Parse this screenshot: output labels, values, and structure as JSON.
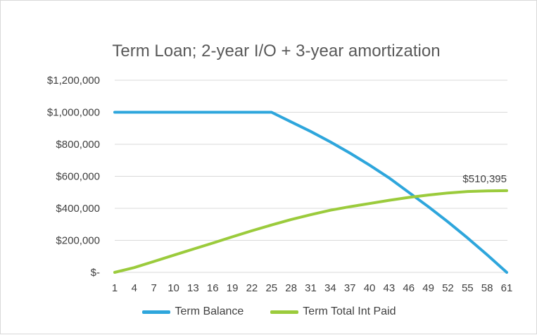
{
  "chart_data": {
    "type": "line",
    "title": "Term Loan; 2-year I/O + 3-year amortization",
    "xlabel": "",
    "ylabel": "",
    "x_min": 1,
    "x_max": 61,
    "x_ticks": [
      1,
      4,
      7,
      10,
      13,
      16,
      19,
      22,
      25,
      28,
      31,
      34,
      37,
      40,
      43,
      46,
      49,
      52,
      55,
      58,
      61
    ],
    "ylim": [
      0,
      1200000
    ],
    "y_ticks": [
      {
        "value": 0,
        "label": "$-"
      },
      {
        "value": 200000,
        "label": "$200,000"
      },
      {
        "value": 400000,
        "label": "$400,000"
      },
      {
        "value": 600000,
        "label": "$600,000"
      },
      {
        "value": 800000,
        "label": "$800,000"
      },
      {
        "value": 1000000,
        "label": "$1,000,000"
      },
      {
        "value": 1200000,
        "label": "$1,200,000"
      }
    ],
    "grid": true,
    "legend_position": "bottom",
    "series": [
      {
        "name": "Term Balance",
        "color": "#2ea6dc",
        "points": [
          [
            1,
            1000000
          ],
          [
            25,
            1000000
          ],
          [
            28,
            940000
          ],
          [
            31,
            880000
          ],
          [
            34,
            815000
          ],
          [
            37,
            745000
          ],
          [
            40,
            670000
          ],
          [
            43,
            590000
          ],
          [
            46,
            500000
          ],
          [
            49,
            410000
          ],
          [
            52,
            315000
          ],
          [
            55,
            215000
          ],
          [
            58,
            110000
          ],
          [
            61,
            0
          ]
        ]
      },
      {
        "name": "Term Total Int Paid",
        "color": "#9bcb3c",
        "points": [
          [
            1,
            0
          ],
          [
            4,
            30000
          ],
          [
            7,
            68000
          ],
          [
            10,
            107000
          ],
          [
            13,
            145000
          ],
          [
            16,
            183000
          ],
          [
            19,
            222000
          ],
          [
            22,
            260000
          ],
          [
            25,
            296000
          ],
          [
            28,
            330000
          ],
          [
            31,
            360000
          ],
          [
            34,
            388000
          ],
          [
            37,
            410000
          ],
          [
            40,
            430000
          ],
          [
            43,
            450000
          ],
          [
            46,
            468000
          ],
          [
            49,
            483000
          ],
          [
            52,
            496000
          ],
          [
            55,
            505000
          ],
          [
            58,
            509000
          ],
          [
            61,
            510395
          ]
        ]
      }
    ],
    "annotations": [
      {
        "text": "$510,395",
        "series": "Term Total Int Paid",
        "x": 61,
        "y": 510395
      }
    ]
  }
}
